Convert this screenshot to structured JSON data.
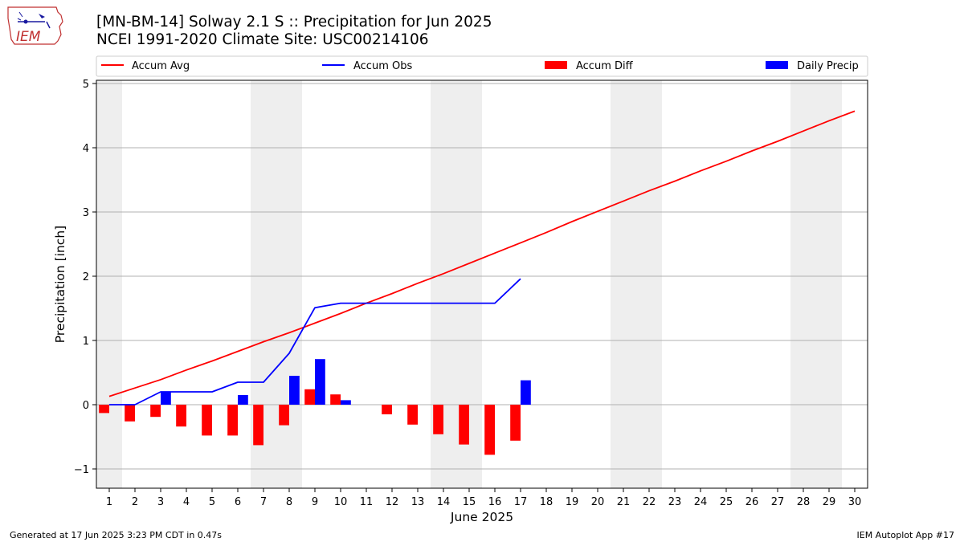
{
  "header": {
    "title_line1": "[MN-BM-14] Solway 2.1 S :: Precipitation for Jun 2025",
    "title_line2": "NCEI 1991-2020 Climate Site: USC00214106",
    "logo_text": "IEM"
  },
  "footer": {
    "generated": "Generated at 17 Jun 2025 3:23 PM CDT in 0.47s",
    "app": "IEM Autoplot App #17"
  },
  "colors": {
    "accum_avg": "#ff0000",
    "accum_obs": "#0000ff",
    "accum_diff": "#ff0000",
    "daily_precip": "#0000ff",
    "weekend_band": "#eeeeee",
    "grid": "#b0b0b0"
  },
  "chart_data": {
    "type": "bar",
    "xlabel": "June 2025",
    "ylabel": "Precipitation [inch]",
    "xlim": [
      0.5,
      30.5
    ],
    "ylim": [
      -1.3,
      5.05
    ],
    "yticks": [
      -1,
      0,
      1,
      2,
      3,
      4,
      5
    ],
    "ytick_labels": [
      "−1",
      "0",
      "1",
      "2",
      "3",
      "4",
      "5"
    ],
    "grid": "horizontal",
    "legend_position": "top",
    "days": [
      1,
      2,
      3,
      4,
      5,
      6,
      7,
      8,
      9,
      10,
      11,
      12,
      13,
      14,
      15,
      16,
      17,
      18,
      19,
      20,
      21,
      22,
      23,
      24,
      25,
      26,
      27,
      28,
      29,
      30
    ],
    "weekend_bands": [
      [
        0.5,
        1.5
      ],
      [
        6.5,
        8.5
      ],
      [
        13.5,
        15.5
      ],
      [
        20.5,
        22.5
      ],
      [
        27.5,
        29.5
      ]
    ],
    "series": [
      {
        "name": "Accum Avg",
        "kind": "line",
        "x": [
          1,
          2,
          3,
          4,
          5,
          6,
          7,
          8,
          9,
          10,
          11,
          12,
          13,
          14,
          15,
          16,
          17,
          18,
          19,
          20,
          21,
          22,
          23,
          24,
          25,
          26,
          27,
          28,
          29,
          30
        ],
        "values": [
          0.13,
          0.26,
          0.39,
          0.54,
          0.68,
          0.83,
          0.98,
          1.12,
          1.27,
          1.42,
          1.58,
          1.73,
          1.89,
          2.04,
          2.2,
          2.36,
          2.52,
          2.68,
          2.85,
          3.01,
          3.17,
          3.33,
          3.48,
          3.64,
          3.79,
          3.95,
          4.1,
          4.26,
          4.42,
          4.57
        ]
      },
      {
        "name": "Accum Obs",
        "kind": "line",
        "x": [
          1,
          2,
          3,
          4,
          5,
          6,
          7,
          8,
          9,
          10,
          11,
          12,
          13,
          14,
          15,
          16,
          17
        ],
        "values": [
          0.0,
          0.0,
          0.2,
          0.2,
          0.2,
          0.35,
          0.35,
          0.8,
          1.51,
          1.58,
          1.58,
          1.58,
          1.58,
          1.58,
          1.58,
          1.58,
          1.96
        ]
      },
      {
        "name": "Accum Diff",
        "kind": "bar",
        "x": [
          1,
          2,
          3,
          4,
          5,
          6,
          7,
          8,
          9,
          10,
          11,
          12,
          13,
          14,
          15,
          16,
          17
        ],
        "values": [
          -0.13,
          -0.26,
          -0.19,
          -0.34,
          -0.48,
          -0.48,
          -0.63,
          -0.32,
          0.24,
          0.16,
          0.0,
          -0.15,
          -0.31,
          -0.46,
          -0.62,
          -0.78,
          -0.56
        ]
      },
      {
        "name": "Daily Precip",
        "kind": "bar",
        "x": [
          1,
          2,
          3,
          4,
          5,
          6,
          7,
          8,
          9,
          10,
          11,
          12,
          13,
          14,
          15,
          16,
          17
        ],
        "values": [
          0,
          0,
          0.2,
          0,
          0,
          0.15,
          0,
          0.45,
          0.71,
          0.07,
          0,
          0,
          0,
          0,
          0,
          0,
          0.38
        ]
      }
    ]
  }
}
